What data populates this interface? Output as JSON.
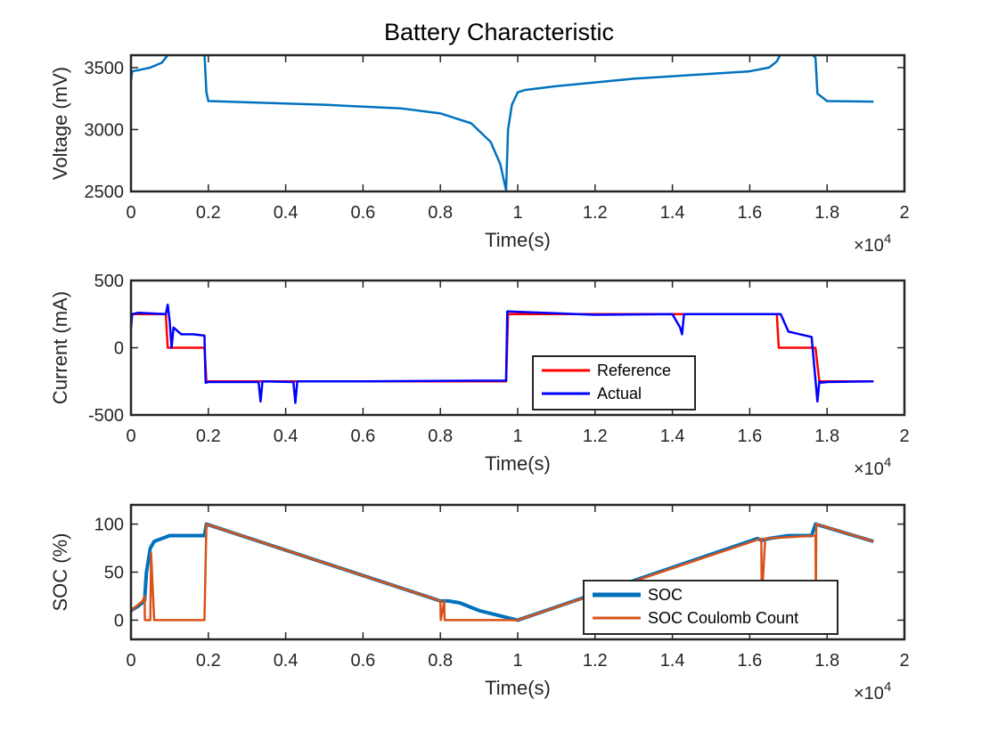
{
  "figure": {
    "title": "Battery Characteristic"
  },
  "chart_data": [
    {
      "type": "line",
      "xlabel": "Time(s)",
      "ylabel": "Voltage (mV)",
      "x_exponent_label": "×10",
      "x_exponent_power": "4",
      "xlim": [
        0,
        2
      ],
      "ylim": [
        2500,
        3600
      ],
      "xticks": [
        0,
        0.2,
        0.4,
        0.6,
        0.8,
        1,
        1.2,
        1.4,
        1.6,
        1.8,
        2
      ],
      "xtick_labels": [
        "0",
        "0.2",
        "0.4",
        "0.6",
        "0.8",
        "1",
        "1.2",
        "1.4",
        "1.6",
        "1.8",
        "2"
      ],
      "yticks": [
        2500,
        3000,
        3500
      ],
      "ytick_labels": [
        "2500",
        "3000",
        "3500"
      ],
      "series": [
        {
          "color": "#0072BD",
          "width": 2.5,
          "x": [
            0,
            0.003,
            0.02,
            0.05,
            0.08,
            0.095,
            0.1,
            0.15,
            0.19,
            0.195,
            0.2,
            0.3,
            0.5,
            0.7,
            0.8,
            0.88,
            0.93,
            0.955,
            0.97,
            0.975,
            0.985,
            1.0,
            1.02,
            1.1,
            1.3,
            1.5,
            1.6,
            1.65,
            1.67,
            1.68,
            1.76,
            1.77,
            1.775,
            1.8,
            1.92
          ],
          "y": [
            3390,
            3470,
            3480,
            3500,
            3540,
            3600,
            3610,
            3610,
            3610,
            3300,
            3230,
            3220,
            3200,
            3170,
            3130,
            3050,
            2900,
            2720,
            2510,
            3000,
            3200,
            3300,
            3320,
            3350,
            3410,
            3450,
            3470,
            3500,
            3550,
            3610,
            3610,
            3580,
            3290,
            3230,
            3225
          ]
        }
      ]
    },
    {
      "type": "line",
      "xlabel": "Time(s)",
      "ylabel": "Current (mA)",
      "x_exponent_label": "×10",
      "x_exponent_power": "4",
      "xlim": [
        0,
        2
      ],
      "ylim": [
        -500,
        500
      ],
      "xticks": [
        0,
        0.2,
        0.4,
        0.6,
        0.8,
        1,
        1.2,
        1.4,
        1.6,
        1.8,
        2
      ],
      "xtick_labels": [
        "0",
        "0.2",
        "0.4",
        "0.6",
        "0.8",
        "1",
        "1.2",
        "1.4",
        "1.6",
        "1.8",
        "2"
      ],
      "yticks": [
        -500,
        0,
        500
      ],
      "ytick_labels": [
        "-500",
        "0",
        "500"
      ],
      "legend": {
        "position": "lower-center",
        "entries": [
          "Reference",
          "Actual"
        ]
      },
      "series": [
        {
          "name": "Reference",
          "color": "#FF0000",
          "width": 2.5,
          "x": [
            0,
            0.09,
            0.095,
            0.18,
            0.19,
            0.195,
            0.5,
            0.97,
            0.975,
            1.3,
            1.67,
            1.675,
            1.77,
            1.78,
            1.92
          ],
          "y": [
            250,
            250,
            0,
            0,
            0,
            -250,
            -250,
            -250,
            250,
            250,
            250,
            0,
            0,
            -250,
            -250
          ]
        },
        {
          "name": "Actual",
          "color": "#0000FF",
          "width": 2.5,
          "x": [
            0,
            0.003,
            0.02,
            0.09,
            0.095,
            0.1,
            0.105,
            0.11,
            0.13,
            0.16,
            0.19,
            0.193,
            0.2,
            0.33,
            0.335,
            0.34,
            0.42,
            0.425,
            0.43,
            0.6,
            0.9,
            0.97,
            0.973,
            1.2,
            1.4,
            1.42,
            1.425,
            1.43,
            1.6,
            1.67,
            1.68,
            1.7,
            1.76,
            1.775,
            1.78,
            1.785,
            1.8,
            1.92
          ],
          "y": [
            140,
            250,
            260,
            250,
            320,
            200,
            0,
            150,
            100,
            100,
            90,
            -260,
            -255,
            -255,
            -400,
            -250,
            -255,
            -410,
            -250,
            -250,
            -245,
            -245,
            270,
            245,
            250,
            150,
            100,
            250,
            250,
            250,
            250,
            120,
            80,
            -400,
            -250,
            -260,
            -255,
            -250
          ]
        }
      ]
    },
    {
      "type": "line",
      "xlabel": "Time(s)",
      "ylabel": "SOC (%)",
      "x_exponent_label": "×10",
      "x_exponent_power": "4",
      "xlim": [
        0,
        2
      ],
      "ylim": [
        -20,
        120
      ],
      "xticks": [
        0,
        0.2,
        0.4,
        0.6,
        0.8,
        1,
        1.2,
        1.4,
        1.6,
        1.8,
        2
      ],
      "xtick_labels": [
        "0",
        "0.2",
        "0.4",
        "0.6",
        "0.8",
        "1",
        "1.2",
        "1.4",
        "1.6",
        "1.8",
        "2"
      ],
      "yticks": [
        0,
        50,
        100
      ],
      "ytick_labels": [
        "0",
        "50",
        "100"
      ],
      "legend": {
        "position": "lower-right",
        "entries": [
          "SOC",
          "SOC Coulomb Count"
        ]
      },
      "series": [
        {
          "name": "SOC",
          "color": "#0072BD",
          "width": 4,
          "x": [
            0,
            0.02,
            0.035,
            0.04,
            0.05,
            0.06,
            0.08,
            0.1,
            0.19,
            0.195,
            0.8,
            0.82,
            0.85,
            0.9,
            0.98,
            1.0,
            1.62,
            1.63,
            1.65,
            1.7,
            1.76,
            1.77,
            1.92
          ],
          "y": [
            10,
            15,
            20,
            50,
            75,
            82,
            85,
            88,
            88,
            100,
            20,
            20,
            18,
            10,
            2,
            0,
            85,
            83,
            85,
            88,
            88,
            100,
            82
          ]
        },
        {
          "name": "SOC Coulomb Count",
          "color": "#D95319",
          "width": 2.5,
          "x": [
            0,
            0.015,
            0.03,
            0.035,
            0.036,
            0.05,
            0.052,
            0.06,
            0.19,
            0.195,
            0.8,
            0.801,
            0.81,
            0.811,
            0.95,
            0.98,
            1.0,
            1.63,
            1.631,
            1.64,
            1.641,
            1.77,
            1.771,
            1.772,
            1.92
          ],
          "y": [
            10,
            15,
            20,
            25,
            0,
            0,
            70,
            0,
            0,
            100,
            20,
            0,
            20,
            0,
            0,
            0,
            0,
            85,
            20,
            85,
            85,
            88,
            20,
            100,
            82
          ]
        }
      ]
    }
  ]
}
